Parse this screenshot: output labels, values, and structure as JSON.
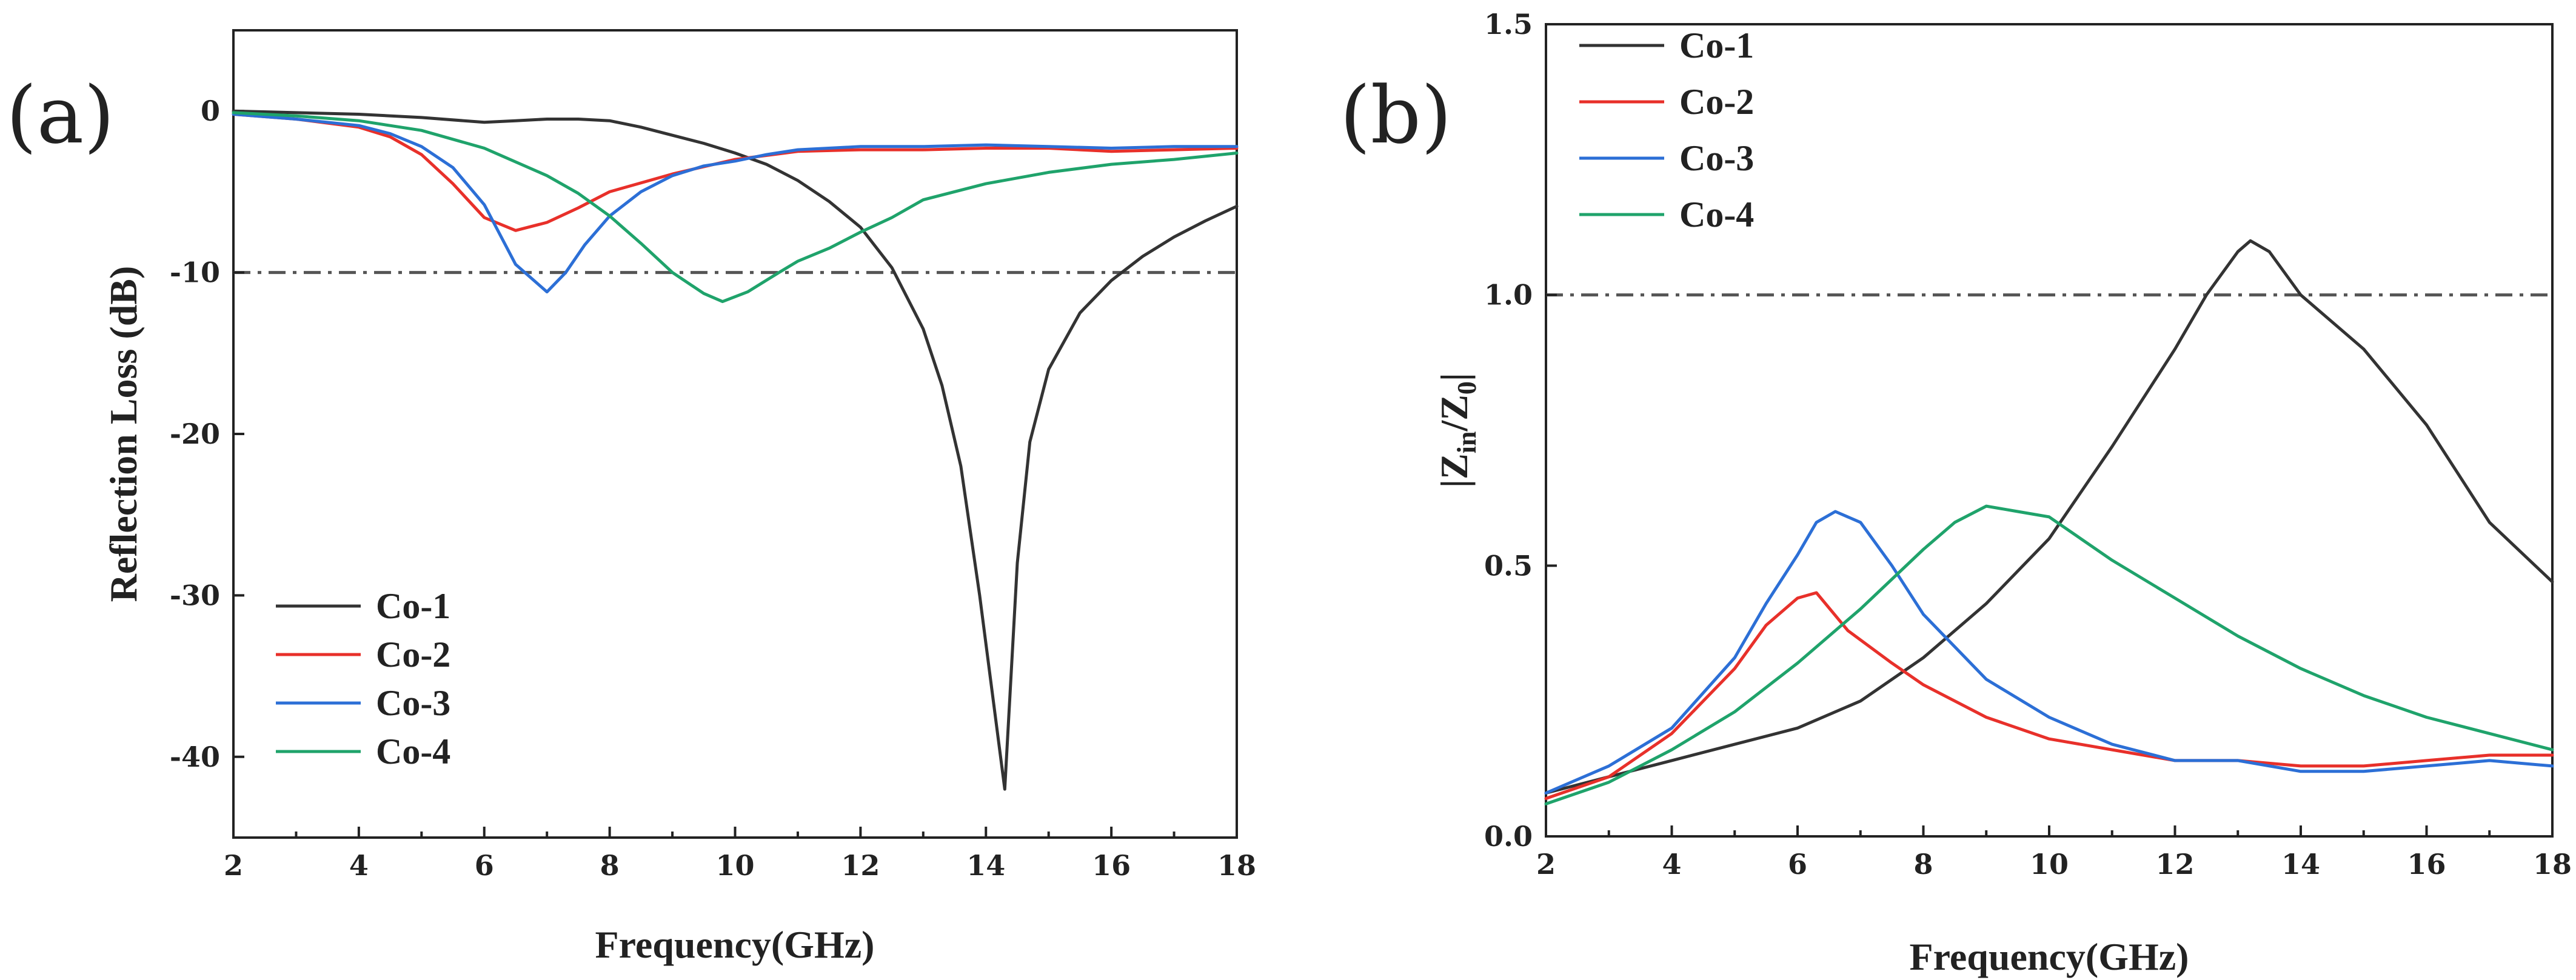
{
  "chart_data": [
    {
      "type": "line",
      "panel_label": "(a)",
      "xlabel": "Frequency(GHz)",
      "ylabel": "Reflection Loss (dB)",
      "xlim": [
        2,
        18
      ],
      "ylim": [
        -45,
        5
      ],
      "xticks": [
        2,
        4,
        6,
        8,
        10,
        12,
        14,
        16,
        18
      ],
      "yticks": [
        -40,
        -30,
        -20,
        -10,
        0
      ],
      "reference_line": -10,
      "legend_position": "bottom-left",
      "series": [
        {
          "name": "Co-1",
          "color": "#333333",
          "x": [
            2,
            4,
            5,
            6,
            6.5,
            7,
            7.5,
            8,
            8.5,
            9,
            9.5,
            10,
            10.5,
            11,
            11.5,
            12,
            12.5,
            13,
            13.3,
            13.6,
            13.9,
            14.1,
            14.3,
            14.5,
            14.7,
            15,
            15.5,
            16,
            16.5,
            17,
            17.5,
            18
          ],
          "y": [
            0,
            -0.2,
            -0.4,
            -0.7,
            -0.6,
            -0.5,
            -0.5,
            -0.6,
            -1.0,
            -1.5,
            -2.0,
            -2.6,
            -3.3,
            -4.3,
            -5.6,
            -7.2,
            -9.7,
            -13.5,
            -17,
            -22,
            -30,
            -36,
            -42,
            -28,
            -20.5,
            -16,
            -12.5,
            -10.5,
            -9,
            -7.8,
            -6.8,
            -5.9
          ]
        },
        {
          "name": "Co-2",
          "color": "#e8302a",
          "x": [
            2,
            3,
            4,
            4.5,
            5,
            5.5,
            6,
            6.5,
            7,
            7.5,
            8,
            9,
            10,
            11,
            12,
            13,
            14,
            15,
            16,
            17,
            18
          ],
          "y": [
            -0.2,
            -0.5,
            -1.0,
            -1.6,
            -2.7,
            -4.5,
            -6.6,
            -7.4,
            -6.9,
            -6.0,
            -5.0,
            -3.9,
            -3.0,
            -2.5,
            -2.4,
            -2.4,
            -2.3,
            -2.3,
            -2.5,
            -2.4,
            -2.3
          ]
        },
        {
          "name": "Co-3",
          "color": "#2c6fd6",
          "x": [
            2,
            3,
            4,
            4.5,
            5,
            5.5,
            6,
            6.5,
            7,
            7.3,
            7.6,
            8,
            8.5,
            9,
            9.5,
            10,
            10.5,
            11,
            12,
            13,
            14,
            15,
            16,
            17,
            18
          ],
          "y": [
            -0.2,
            -0.5,
            -0.9,
            -1.4,
            -2.2,
            -3.5,
            -5.8,
            -9.5,
            -11.2,
            -10.0,
            -8.3,
            -6.5,
            -5.0,
            -4.0,
            -3.4,
            -3.1,
            -2.7,
            -2.4,
            -2.2,
            -2.2,
            -2.1,
            -2.2,
            -2.3,
            -2.2,
            -2.2
          ]
        },
        {
          "name": "Co-4",
          "color": "#1fa36b",
          "x": [
            2,
            3,
            4,
            5,
            6,
            7,
            7.5,
            8,
            8.5,
            9,
            9.5,
            9.8,
            10.2,
            10.7,
            11,
            11.5,
            12,
            12.5,
            13,
            14,
            15,
            16,
            17,
            18
          ],
          "y": [
            -0.1,
            -0.3,
            -0.6,
            -1.2,
            -2.3,
            -4.0,
            -5.1,
            -6.5,
            -8.2,
            -10.0,
            -11.3,
            -11.8,
            -11.2,
            -10.0,
            -9.3,
            -8.5,
            -7.5,
            -6.6,
            -5.5,
            -4.5,
            -3.8,
            -3.3,
            -3.0,
            -2.6
          ]
        }
      ]
    },
    {
      "type": "line",
      "panel_label": "(b)",
      "xlabel": "Frequency(GHz)",
      "ylabel_main": "|Z",
      "ylabel_sub1": "in",
      "ylabel_mid": "/Z",
      "ylabel_sub2": "0",
      "ylabel_end": "|",
      "xlim": [
        2,
        18
      ],
      "ylim": [
        0,
        1.5
      ],
      "xticks": [
        2,
        4,
        6,
        8,
        10,
        12,
        14,
        16,
        18
      ],
      "yticks": [
        0.0,
        0.5,
        1.0,
        1.5
      ],
      "ytick_labels": [
        "0.0",
        "0.5",
        "1.0",
        "1.5"
      ],
      "reference_line": 1.0,
      "legend_position": "top-left",
      "series": [
        {
          "name": "Co-1",
          "color": "#333333",
          "x": [
            2,
            3,
            4,
            5,
            6,
            7,
            8,
            9,
            10,
            11,
            12,
            12.5,
            13,
            13.2,
            13.5,
            14,
            15,
            16,
            17,
            18
          ],
          "y": [
            0.08,
            0.11,
            0.14,
            0.17,
            0.2,
            0.25,
            0.33,
            0.43,
            0.55,
            0.72,
            0.9,
            1.0,
            1.08,
            1.1,
            1.08,
            1.0,
            0.9,
            0.76,
            0.58,
            0.47
          ]
        },
        {
          "name": "Co-2",
          "color": "#e8302a",
          "x": [
            2,
            3,
            4,
            5,
            5.5,
            6,
            6.3,
            6.8,
            7.5,
            8,
            9,
            10,
            11,
            12,
            13,
            14,
            15,
            16,
            17,
            18
          ],
          "y": [
            0.07,
            0.11,
            0.19,
            0.31,
            0.39,
            0.44,
            0.45,
            0.38,
            0.32,
            0.28,
            0.22,
            0.18,
            0.16,
            0.14,
            0.14,
            0.13,
            0.13,
            0.14,
            0.15,
            0.15
          ]
        },
        {
          "name": "Co-3",
          "color": "#2c6fd6",
          "x": [
            2,
            3,
            4,
            5,
            5.5,
            6,
            6.3,
            6.6,
            7,
            7.5,
            8,
            9,
            10,
            11,
            12,
            13,
            14,
            15,
            16,
            17,
            18
          ],
          "y": [
            0.08,
            0.13,
            0.2,
            0.33,
            0.43,
            0.52,
            0.58,
            0.6,
            0.58,
            0.5,
            0.41,
            0.29,
            0.22,
            0.17,
            0.14,
            0.14,
            0.12,
            0.12,
            0.13,
            0.14,
            0.13
          ]
        },
        {
          "name": "Co-4",
          "color": "#1fa36b",
          "x": [
            2,
            3,
            4,
            5,
            6,
            7,
            8,
            8.5,
            9,
            9.5,
            10,
            11,
            12,
            13,
            14,
            15,
            16,
            17,
            18
          ],
          "y": [
            0.06,
            0.1,
            0.16,
            0.23,
            0.32,
            0.42,
            0.53,
            0.58,
            0.61,
            0.6,
            0.59,
            0.51,
            0.44,
            0.37,
            0.31,
            0.26,
            0.22,
            0.19,
            0.16
          ]
        }
      ]
    }
  ]
}
